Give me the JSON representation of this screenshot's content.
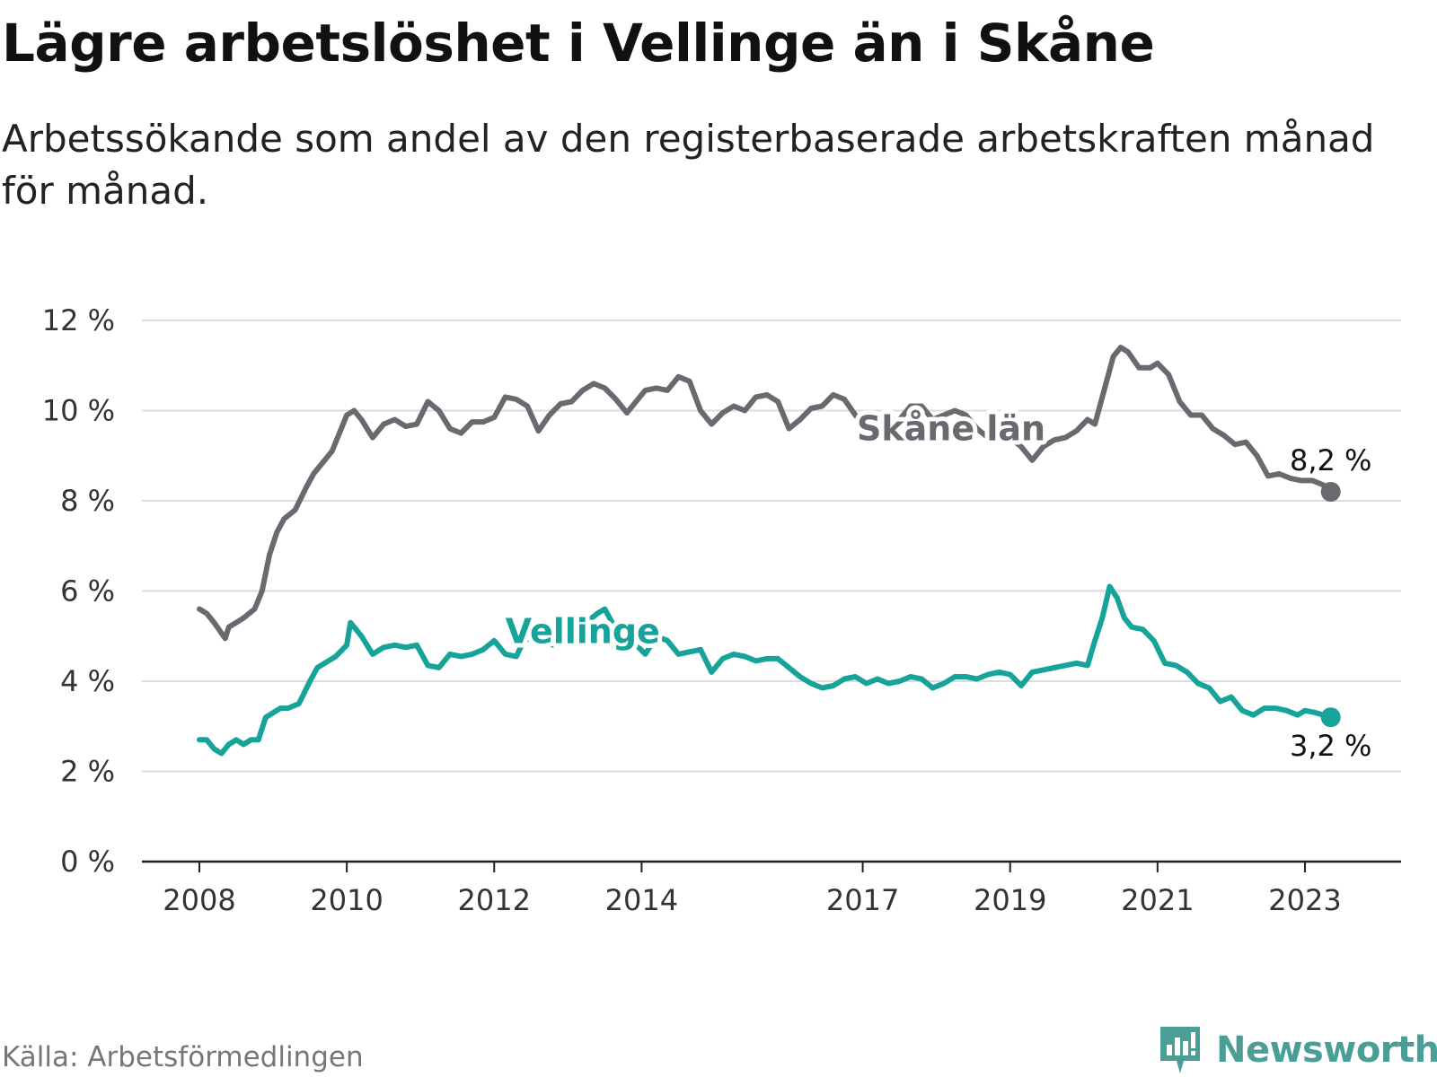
{
  "title": "Lägre arbetslöshet i Vellinge än i Skåne",
  "subtitle": "Arbetssökande som andel av den registerbaserade arbetskraften månad för månad.",
  "source": "Källa: Arbetsförmedlingen",
  "brand": {
    "name": "Newsworthy",
    "icon": "newsworthy-logo-icon",
    "color": "#4a9e96"
  },
  "chart_data": {
    "type": "line",
    "title": "Lägre arbetslöshet i Vellinge än i Skåne",
    "xlabel": "",
    "ylabel": "",
    "x_range": [
      2008.0,
      2023.5
    ],
    "ylim": [
      0,
      12
    ],
    "y_ticks": [
      0,
      2,
      4,
      6,
      8,
      10,
      12
    ],
    "y_tick_labels": [
      "0 %",
      "2 %",
      "4 %",
      "6 %",
      "8 %",
      "10 %",
      "12 %"
    ],
    "x_ticks": [
      2008,
      2010,
      2012,
      2014,
      2017,
      2019,
      2021,
      2023
    ],
    "x_tick_labels": [
      "2008",
      "2010",
      "2012",
      "2014",
      "2017",
      "2019",
      "2021",
      "2023"
    ],
    "grid": true,
    "series": [
      {
        "name": "Skåne län",
        "color": "#6a6970",
        "end_label": "8,2 %",
        "x": [
          2008.0,
          2008.1,
          2008.2,
          2008.35,
          2008.4,
          2008.5,
          2008.6,
          2008.75,
          2008.85,
          2008.95,
          2009.05,
          2009.15,
          2009.3,
          2009.45,
          2009.55,
          2009.65,
          2009.8,
          2009.9,
          2010.0,
          2010.1,
          2010.2,
          2010.35,
          2010.5,
          2010.65,
          2010.8,
          2010.95,
          2011.1,
          2011.25,
          2011.4,
          2011.55,
          2011.7,
          2011.85,
          2012.0,
          2012.15,
          2012.3,
          2012.45,
          2012.6,
          2012.75,
          2012.9,
          2013.05,
          2013.2,
          2013.35,
          2013.5,
          2013.65,
          2013.8,
          2013.95,
          2014.05,
          2014.2,
          2014.35,
          2014.5,
          2014.65,
          2014.8,
          2014.95,
          2015.1,
          2015.25,
          2015.4,
          2015.55,
          2015.7,
          2015.85,
          2016.0,
          2016.15,
          2016.3,
          2016.45,
          2016.6,
          2016.75,
          2016.9,
          2017.05,
          2017.2,
          2017.35,
          2017.5,
          2017.65,
          2017.8,
          2017.95,
          2018.1,
          2018.25,
          2018.4,
          2018.55,
          2018.7,
          2018.85,
          2019.0,
          2019.15,
          2019.3,
          2019.45,
          2019.6,
          2019.75,
          2019.9,
          2020.05,
          2020.15,
          2020.3,
          2020.4,
          2020.5,
          2020.6,
          2020.75,
          2020.9,
          2021.0,
          2021.15,
          2021.3,
          2021.45,
          2021.6,
          2021.75,
          2021.9,
          2022.05,
          2022.2,
          2022.35,
          2022.5,
          2022.65,
          2022.8,
          2022.95,
          2023.1,
          2023.25,
          2023.35
        ],
        "y": [
          5.6,
          5.5,
          5.3,
          4.95,
          5.2,
          5.3,
          5.4,
          5.6,
          6.0,
          6.8,
          7.3,
          7.6,
          7.8,
          8.3,
          8.6,
          8.8,
          9.1,
          9.5,
          9.9,
          10.0,
          9.8,
          9.4,
          9.7,
          9.8,
          9.65,
          9.7,
          10.2,
          10.0,
          9.6,
          9.5,
          9.75,
          9.75,
          9.85,
          10.3,
          10.25,
          10.1,
          9.55,
          9.9,
          10.15,
          10.2,
          10.45,
          10.6,
          10.5,
          10.25,
          9.95,
          10.25,
          10.45,
          10.5,
          10.45,
          10.75,
          10.65,
          10.0,
          9.7,
          9.95,
          10.1,
          10.0,
          10.3,
          10.35,
          10.2,
          9.6,
          9.8,
          10.05,
          10.1,
          10.35,
          10.25,
          9.9,
          9.6,
          9.65,
          9.7,
          9.8,
          10.1,
          10.1,
          9.8,
          9.9,
          10.0,
          9.9,
          9.6,
          9.4,
          9.5,
          9.4,
          9.2,
          8.9,
          9.2,
          9.35,
          9.4,
          9.55,
          9.8,
          9.7,
          10.6,
          11.2,
          11.4,
          11.3,
          10.95,
          10.95,
          11.05,
          10.8,
          10.2,
          9.9,
          9.9,
          9.6,
          9.45,
          9.25,
          9.3,
          9.0,
          8.55,
          8.6,
          8.5,
          8.45,
          8.45,
          8.35,
          8.2
        ]
      },
      {
        "name": "Vellinge",
        "color": "#16a39a",
        "end_label": "3,2 %",
        "x": [
          2008.0,
          2008.1,
          2008.2,
          2008.3,
          2008.4,
          2008.5,
          2008.6,
          2008.7,
          2008.8,
          2008.9,
          2009.0,
          2009.1,
          2009.2,
          2009.35,
          2009.5,
          2009.6,
          2009.7,
          2009.85,
          2010.0,
          2010.05,
          2010.1,
          2010.2,
          2010.35,
          2010.5,
          2010.65,
          2010.8,
          2010.95,
          2011.1,
          2011.25,
          2011.4,
          2011.55,
          2011.7,
          2011.85,
          2012.0,
          2012.15,
          2012.3,
          2012.4,
          2012.5,
          2012.65,
          2012.8,
          2012.95,
          2013.1,
          2013.25,
          2013.4,
          2013.5,
          2013.6,
          2013.75,
          2013.9,
          2014.05,
          2014.2,
          2014.35,
          2014.5,
          2014.65,
          2014.8,
          2014.95,
          2015.1,
          2015.25,
          2015.4,
          2015.55,
          2015.7,
          2015.85,
          2016.0,
          2016.15,
          2016.3,
          2016.45,
          2016.6,
          2016.75,
          2016.9,
          2017.05,
          2017.2,
          2017.35,
          2017.5,
          2017.65,
          2017.8,
          2017.95,
          2018.1,
          2018.25,
          2018.4,
          2018.55,
          2018.7,
          2018.85,
          2019.0,
          2019.15,
          2019.3,
          2019.45,
          2019.6,
          2019.75,
          2019.9,
          2020.05,
          2020.15,
          2020.25,
          2020.35,
          2020.45,
          2020.55,
          2020.65,
          2020.8,
          2020.95,
          2021.1,
          2021.25,
          2021.4,
          2021.55,
          2021.7,
          2021.85,
          2022.0,
          2022.15,
          2022.3,
          2022.45,
          2022.6,
          2022.75,
          2022.9,
          2023.0,
          2023.15,
          2023.25,
          2023.35
        ],
        "y": [
          2.7,
          2.7,
          2.5,
          2.4,
          2.6,
          2.7,
          2.6,
          2.7,
          2.7,
          3.2,
          3.3,
          3.4,
          3.4,
          3.5,
          4.0,
          4.3,
          4.4,
          4.55,
          4.8,
          5.3,
          5.2,
          5.0,
          4.6,
          4.75,
          4.8,
          4.75,
          4.8,
          4.35,
          4.3,
          4.6,
          4.55,
          4.6,
          4.7,
          4.9,
          4.6,
          4.55,
          4.9,
          4.95,
          4.95,
          4.8,
          5.0,
          4.9,
          5.3,
          5.5,
          5.6,
          5.3,
          5.0,
          4.85,
          4.6,
          5.0,
          4.9,
          4.6,
          4.65,
          4.7,
          4.2,
          4.5,
          4.6,
          4.55,
          4.45,
          4.5,
          4.5,
          4.3,
          4.1,
          3.95,
          3.85,
          3.9,
          4.05,
          4.1,
          3.95,
          4.05,
          3.95,
          4.0,
          4.1,
          4.05,
          3.85,
          3.95,
          4.1,
          4.1,
          4.05,
          4.15,
          4.2,
          4.15,
          3.9,
          4.2,
          4.25,
          4.3,
          4.35,
          4.4,
          4.35,
          4.9,
          5.4,
          6.1,
          5.85,
          5.4,
          5.2,
          5.15,
          4.9,
          4.4,
          4.35,
          4.2,
          3.95,
          3.85,
          3.55,
          3.65,
          3.35,
          3.25,
          3.4,
          3.4,
          3.35,
          3.25,
          3.35,
          3.3,
          3.25,
          3.2
        ]
      }
    ]
  }
}
